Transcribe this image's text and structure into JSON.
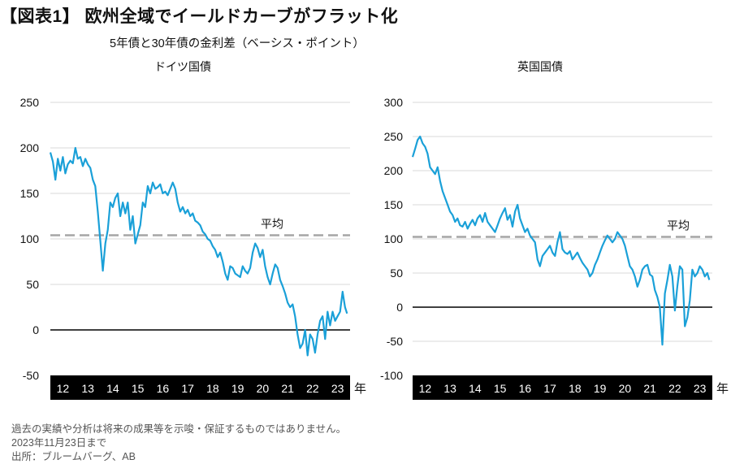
{
  "title": "【図表1】 欧州全域でイールドカーブがフラット化",
  "subtitle": "5年債と30年債の金利差（ベーシス・ポイント）",
  "year_unit": "年",
  "colors": {
    "series": "#1aa0d8",
    "average": "#a6a6a6",
    "axis_band": "#000000",
    "zero": "#000000",
    "grid": "#d9d9d9"
  },
  "chart_data": [
    {
      "type": "line",
      "title": "ドイツ国債",
      "x_categories": [
        "12",
        "13",
        "14",
        "15",
        "16",
        "17",
        "18",
        "19",
        "20",
        "21",
        "22",
        "23"
      ],
      "xlim": [
        2012.0,
        2024.0
      ],
      "ylim": [
        -50,
        250
      ],
      "yticks": [
        -50,
        0,
        50,
        100,
        150,
        200,
        250
      ],
      "grid": true,
      "average": {
        "label": "平均",
        "value": 104
      },
      "series": [
        {
          "x": [
            2012.0,
            2012.1,
            2012.2,
            2012.3,
            2012.4,
            2012.5,
            2012.6,
            2012.7,
            2012.8,
            2012.9,
            2013.0,
            2013.1,
            2013.2,
            2013.3,
            2013.4,
            2013.5,
            2013.6,
            2013.7,
            2013.8,
            2013.9,
            2014.0,
            2014.1,
            2014.2,
            2014.3,
            2014.4,
            2014.5,
            2014.6,
            2014.7,
            2014.8,
            2014.9,
            2015.0,
            2015.1,
            2015.2,
            2015.3,
            2015.4,
            2015.5,
            2015.6,
            2015.7,
            2015.8,
            2015.9,
            2016.0,
            2016.1,
            2016.2,
            2016.3,
            2016.4,
            2016.5,
            2016.6,
            2016.7,
            2016.8,
            2016.9,
            2017.0,
            2017.1,
            2017.2,
            2017.3,
            2017.4,
            2017.5,
            2017.6,
            2017.7,
            2017.8,
            2017.9,
            2018.0,
            2018.1,
            2018.2,
            2018.3,
            2018.4,
            2018.5,
            2018.6,
            2018.7,
            2018.8,
            2018.9,
            2019.0,
            2019.1,
            2019.2,
            2019.3,
            2019.4,
            2019.5,
            2019.6,
            2019.7,
            2019.8,
            2019.9,
            2020.0,
            2020.1,
            2020.2,
            2020.3,
            2020.4,
            2020.5,
            2020.6,
            2020.7,
            2020.8,
            2020.9,
            2021.0,
            2021.1,
            2021.2,
            2021.3,
            2021.4,
            2021.5,
            2021.6,
            2021.7,
            2021.8,
            2021.9,
            2022.0,
            2022.1,
            2022.2,
            2022.3,
            2022.4,
            2022.5,
            2022.6,
            2022.7,
            2022.8,
            2022.9,
            2023.0,
            2023.1,
            2023.2,
            2023.3,
            2023.4,
            2023.5,
            2023.6,
            2023.7,
            2023.8,
            2023.88
          ],
          "y": [
            195,
            185,
            165,
            188,
            175,
            190,
            172,
            182,
            186,
            183,
            200,
            188,
            190,
            180,
            188,
            182,
            178,
            165,
            158,
            130,
            98,
            65,
            95,
            110,
            140,
            135,
            145,
            150,
            125,
            140,
            128,
            140,
            110,
            125,
            95,
            105,
            115,
            140,
            135,
            158,
            150,
            162,
            155,
            157,
            160,
            150,
            152,
            148,
            155,
            162,
            155,
            140,
            130,
            135,
            128,
            132,
            125,
            128,
            120,
            118,
            115,
            108,
            105,
            100,
            98,
            92,
            88,
            80,
            85,
            75,
            62,
            55,
            70,
            68,
            62,
            60,
            58,
            70,
            65,
            62,
            68,
            85,
            95,
            90,
            80,
            88,
            70,
            58,
            50,
            62,
            72,
            68,
            55,
            48,
            40,
            30,
            25,
            28,
            15,
            -5,
            -20,
            -15,
            0,
            -28,
            -5,
            -10,
            -25,
            -5,
            10,
            15,
            -10,
            20,
            5,
            20,
            10,
            15,
            20,
            42,
            25,
            18
          ]
        }
      ]
    },
    {
      "type": "line",
      "title": "英国国債",
      "x_categories": [
        "12",
        "13",
        "14",
        "15",
        "16",
        "17",
        "18",
        "19",
        "20",
        "21",
        "22",
        "23"
      ],
      "xlim": [
        2012.0,
        2024.0
      ],
      "ylim": [
        -100,
        300
      ],
      "yticks": [
        -100,
        -50,
        0,
        50,
        100,
        150,
        200,
        250,
        300
      ],
      "grid": true,
      "average": {
        "label": "平均",
        "value": 103
      },
      "series": [
        {
          "x": [
            2012.0,
            2012.1,
            2012.2,
            2012.3,
            2012.4,
            2012.5,
            2012.6,
            2012.7,
            2012.8,
            2012.9,
            2013.0,
            2013.1,
            2013.2,
            2013.3,
            2013.4,
            2013.5,
            2013.6,
            2013.7,
            2013.8,
            2013.9,
            2014.0,
            2014.1,
            2014.2,
            2014.3,
            2014.4,
            2014.5,
            2014.6,
            2014.7,
            2014.8,
            2014.9,
            2015.0,
            2015.1,
            2015.2,
            2015.3,
            2015.4,
            2015.5,
            2015.6,
            2015.7,
            2015.8,
            2015.9,
            2016.0,
            2016.1,
            2016.2,
            2016.3,
            2016.4,
            2016.5,
            2016.6,
            2016.7,
            2016.8,
            2016.9,
            2017.0,
            2017.1,
            2017.2,
            2017.3,
            2017.4,
            2017.5,
            2017.6,
            2017.7,
            2017.8,
            2017.9,
            2018.0,
            2018.1,
            2018.2,
            2018.3,
            2018.4,
            2018.5,
            2018.6,
            2018.7,
            2018.8,
            2018.9,
            2019.0,
            2019.1,
            2019.2,
            2019.3,
            2019.4,
            2019.5,
            2019.6,
            2019.7,
            2019.8,
            2019.9,
            2020.0,
            2020.1,
            2020.2,
            2020.3,
            2020.4,
            2020.5,
            2020.6,
            2020.7,
            2020.8,
            2020.9,
            2021.0,
            2021.1,
            2021.2,
            2021.3,
            2021.4,
            2021.5,
            2021.6,
            2021.7,
            2021.8,
            2021.9,
            2022.0,
            2022.1,
            2022.2,
            2022.3,
            2022.4,
            2022.5,
            2022.6,
            2022.7,
            2022.8,
            2022.9,
            2023.0,
            2023.1,
            2023.2,
            2023.3,
            2023.4,
            2023.5,
            2023.6,
            2023.7,
            2023.8,
            2023.88
          ],
          "y": [
            220,
            232,
            245,
            250,
            240,
            235,
            225,
            205,
            200,
            195,
            205,
            185,
            170,
            160,
            150,
            140,
            135,
            125,
            130,
            120,
            118,
            125,
            115,
            122,
            128,
            120,
            130,
            135,
            125,
            138,
            125,
            120,
            115,
            110,
            120,
            130,
            138,
            145,
            128,
            135,
            118,
            140,
            150,
            130,
            120,
            110,
            115,
            105,
            100,
            95,
            70,
            60,
            75,
            80,
            85,
            90,
            80,
            75,
            95,
            110,
            85,
            80,
            78,
            82,
            70,
            75,
            80,
            72,
            65,
            60,
            55,
            45,
            50,
            62,
            70,
            80,
            90,
            98,
            105,
            100,
            95,
            100,
            110,
            105,
            100,
            90,
            75,
            60,
            55,
            45,
            30,
            40,
            55,
            60,
            62,
            48,
            45,
            25,
            15,
            0,
            -55,
            20,
            40,
            62,
            45,
            -5,
            30,
            60,
            55,
            -28,
            -15,
            10,
            55,
            45,
            50,
            60,
            55,
            45,
            50,
            40
          ]
        }
      ]
    }
  ],
  "footnotes": [
    "過去の実績や分析は将来の成果等を示唆・保証するものではありません。",
    "2023年11月23日まで",
    "出所：ブルームバーグ、AB"
  ]
}
